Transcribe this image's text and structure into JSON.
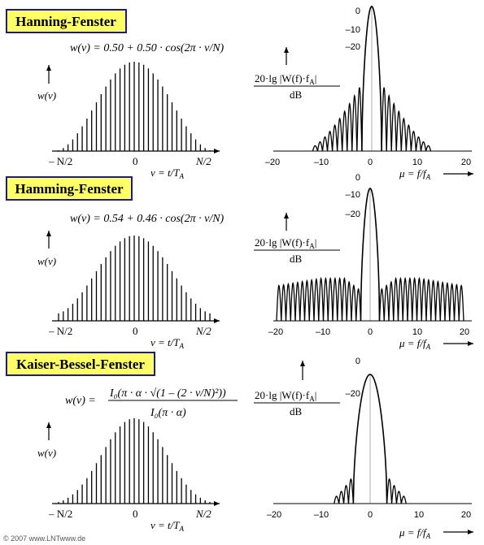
{
  "copyright": "© 2007 www.LNTwww.de",
  "colors": {
    "title_background": "#ffff66",
    "title_border": "#1b1b8f",
    "lines": "#000000"
  },
  "common": {
    "time_axis": {
      "ylabel": "w(ν)",
      "xlabel": "ν = t/T",
      "xlabel_subscript": "A",
      "tick_left": "– N/2",
      "tick_center": "0",
      "tick_right": "N/2"
    },
    "spectrum_axis": {
      "ylabel_top": "20·lg |W(f)·f",
      "ylabel_top_sub": "A",
      "ylabel_top_end": "|",
      "ylabel_bottom": "dB",
      "xlabel": "μ = f/f",
      "xlabel_subscript": "A",
      "x_ticks": [
        "–20",
        "–10",
        "0",
        "10",
        "20"
      ]
    }
  },
  "panels": [
    {
      "title": "Hanning-Fenster",
      "formula": "w(ν) = 0.50 + 0.50 · cos(2π · ν/N)",
      "y_ticks": [
        "0",
        "–10",
        "–20"
      ]
    },
    {
      "title": "Hamming-Fenster",
      "formula": "w(ν) = 0.54 + 0.46 · cos(2π · ν/N)",
      "y_ticks": [
        "0",
        "–10",
        "–20"
      ]
    },
    {
      "title": "Kaiser-Bessel-Fenster",
      "formula_lhs": "w(ν) =",
      "formula_num": "I₀(π · α · √(1 – (2 · ν/N)²))",
      "formula_den": "I₀(π · α)",
      "y_ticks": [
        "0",
        "–20"
      ]
    }
  ],
  "chart_data": [
    {
      "type": "bar",
      "title": "Hanning-Fenster",
      "window": "Hanning",
      "a0": 0.5,
      "a1": 0.5,
      "samples": 33,
      "xlabel": "ν = t/TA",
      "ylabel": "w(ν)",
      "xlim": [
        "–N/2",
        "N/2"
      ]
    },
    {
      "type": "line",
      "title": "Hanning-Fenster",
      "window": "Hanning",
      "xlabel": "μ = f/fA",
      "ylabel": "20·lg |W(f)·fA| dB",
      "xlim": [
        -20,
        20
      ],
      "main_lobe_halfwidth_mu": 2,
      "sidelobe_extent_mu": [
        -12,
        12
      ],
      "y_ticks": [
        0,
        -10,
        -20
      ]
    },
    {
      "type": "bar",
      "title": "Hamming-Fenster",
      "window": "Hamming",
      "a0": 0.54,
      "a1": 0.46,
      "samples": 33,
      "xlabel": "ν = t/TA",
      "ylabel": "w(ν)",
      "xlim": [
        "–N/2",
        "N/2"
      ]
    },
    {
      "type": "line",
      "title": "Hamming-Fenster",
      "window": "Hamming",
      "xlabel": "μ = f/fA",
      "ylabel": "20·lg |W(f)·fA| dB",
      "xlim": [
        -20,
        20
      ],
      "main_lobe_halfwidth_mu": 2,
      "sidelobe_extent_mu": [
        -20,
        20
      ],
      "y_ticks": [
        0,
        -10,
        -20
      ]
    },
    {
      "type": "bar",
      "title": "Kaiser-Bessel-Fenster",
      "window": "Kaiser-Bessel",
      "samples": 33,
      "xlabel": "ν = t/TA",
      "ylabel": "w(ν)",
      "xlim": [
        "–N/2",
        "N/2"
      ]
    },
    {
      "type": "line",
      "title": "Kaiser-Bessel-Fenster",
      "window": "Kaiser-Bessel",
      "xlabel": "μ = f/fA",
      "ylabel": "20·lg |W(f)·fA| dB",
      "xlim": [
        -20,
        20
      ],
      "main_lobe_halfwidth_mu": 3.5,
      "sidelobe_extent_mu": [
        -8,
        8
      ],
      "y_ticks": [
        0,
        -20
      ]
    }
  ]
}
